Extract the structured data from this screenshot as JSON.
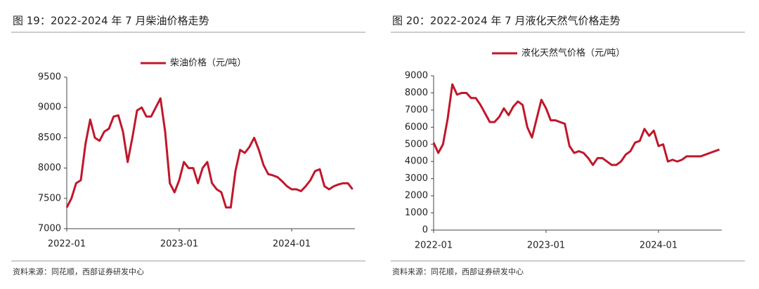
{
  "chart_data": [
    {
      "type": "line",
      "title": "图 19：2022-2024 年 7 月柴油价格走势",
      "source": "资料来源：同花顺，西部证券研发中心",
      "categories": [
        "2022-01",
        null,
        null,
        null,
        null,
        null,
        null,
        null,
        null,
        null,
        null,
        null,
        null,
        null,
        null,
        null,
        null,
        null,
        null,
        null,
        null,
        null,
        null,
        null,
        "2023-01",
        null,
        null,
        null,
        null,
        null,
        null,
        null,
        null,
        null,
        null,
        null,
        null,
        null,
        null,
        null,
        null,
        null,
        null,
        null,
        null,
        null,
        null,
        null,
        "2024-01",
        null,
        null,
        null,
        null,
        null,
        null,
        null,
        null,
        null,
        null,
        null,
        null,
        null
      ],
      "series": [
        {
          "name": "柴油价格（元/吨）",
          "color": "#c0172b",
          "values": [
            7350,
            7500,
            7750,
            7800,
            8400,
            8800,
            8500,
            8450,
            8600,
            8650,
            8850,
            8870,
            8600,
            8100,
            8500,
            8950,
            9000,
            8850,
            8850,
            9000,
            9150,
            8600,
            7750,
            7600,
            7800,
            8100,
            8000,
            8000,
            7750,
            8000,
            8100,
            7750,
            7650,
            7600,
            7350,
            7350,
            7950,
            8300,
            8250,
            8350,
            8500,
            8300,
            8050,
            7900,
            7880,
            7850,
            7780,
            7700,
            7650,
            7650,
            7620,
            7700,
            7800,
            7950,
            7980,
            7700,
            7650,
            7700,
            7730,
            7750,
            7750,
            7650
          ]
        }
      ],
      "ylim": [
        7000,
        9500
      ],
      "yticks": [
        7000,
        7500,
        8000,
        8500,
        9000,
        9500
      ],
      "legend": "top"
    },
    {
      "type": "line",
      "title": "图 20：2022-2024 年 7 月液化天然气价格走势",
      "source": "资料来源：同花顺，西部证券研发中心",
      "categories": [
        "2022-01",
        null,
        null,
        null,
        null,
        null,
        null,
        null,
        null,
        null,
        null,
        null,
        null,
        null,
        null,
        null,
        null,
        null,
        null,
        null,
        null,
        null,
        null,
        null,
        "2023-01",
        null,
        null,
        null,
        null,
        null,
        null,
        null,
        null,
        null,
        null,
        null,
        null,
        null,
        null,
        null,
        null,
        null,
        null,
        null,
        null,
        null,
        null,
        null,
        "2024-01",
        null,
        null,
        null,
        null,
        null,
        null,
        null,
        null,
        null,
        null,
        null,
        null,
        null
      ],
      "series": [
        {
          "name": "液化天然气价格（元/吨）",
          "color": "#c0172b",
          "values": [
            5100,
            4500,
            5000,
            6500,
            8500,
            7900,
            8000,
            8000,
            7700,
            7700,
            7300,
            6800,
            6300,
            6300,
            6600,
            7100,
            6700,
            7200,
            7500,
            7300,
            6000,
            5400,
            6500,
            7600,
            7100,
            6400,
            6400,
            6300,
            6200,
            4900,
            4500,
            4600,
            4500,
            4200,
            3800,
            4200,
            4200,
            4000,
            3800,
            3800,
            4000,
            4400,
            4600,
            5100,
            5200,
            5900,
            5500,
            5800,
            4900,
            5000,
            4000,
            4100,
            4000,
            4100,
            4300,
            4300,
            4300,
            4300,
            4400,
            4500,
            4600,
            4700
          ]
        }
      ],
      "ylim": [
        0,
        9000
      ],
      "yticks": [
        0,
        1000,
        2000,
        3000,
        4000,
        5000,
        6000,
        7000,
        8000,
        9000
      ],
      "legend": "top"
    }
  ]
}
